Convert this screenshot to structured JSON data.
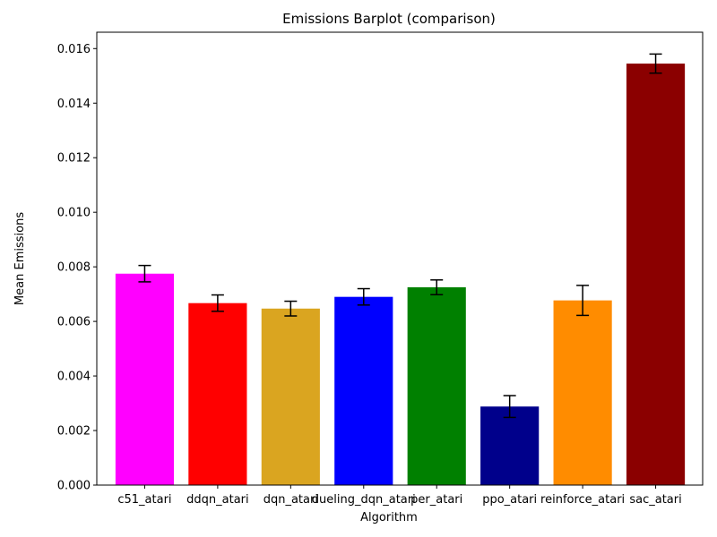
{
  "chart_data": {
    "type": "bar",
    "title": "Emissions Barplot (comparison)",
    "xlabel": "Algorithm",
    "ylabel": "Mean Emissions",
    "ylim": [
      0,
      0.0166
    ],
    "yticks": [
      "0.000",
      "0.002",
      "0.004",
      "0.006",
      "0.008",
      "0.010",
      "0.012",
      "0.014",
      "0.016"
    ],
    "grid": false,
    "categories": [
      "c51_atari",
      "ddqn_atari",
      "dqn_atari",
      "dueling_dqn_atari",
      "per_atari",
      "ppo_atari",
      "reinforce_atari",
      "sac_atari"
    ],
    "values": [
      0.00775,
      0.00667,
      0.00647,
      0.0069,
      0.00725,
      0.00288,
      0.00677,
      0.01545
    ],
    "errors": [
      0.0003,
      0.0003,
      0.00027,
      0.0003,
      0.00027,
      0.0004,
      0.00055,
      0.00035
    ],
    "colors": [
      "#ff00ff",
      "#ff0000",
      "#daa520",
      "#0000ff",
      "#008000",
      "#00008b",
      "#ff8c00",
      "#8b0000"
    ]
  }
}
